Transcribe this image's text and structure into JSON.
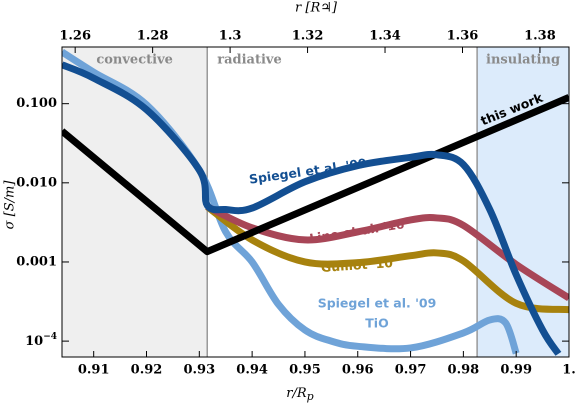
{
  "chart_data": {
    "type": "line",
    "x_label": {
      "main": "r/R",
      "sub": "p"
    },
    "y_label": "σ [S/m]",
    "x2_label": "r [R♃]",
    "xlim": [
      0.904,
      1.0
    ],
    "xticks": [
      0.91,
      0.92,
      0.93,
      0.94,
      0.95,
      0.96,
      0.97,
      0.98,
      0.99,
      {
        "value": 1.0,
        "label": "1."
      }
    ],
    "x2lim": [
      1.2566,
      1.3875
    ],
    "x2ticks": [
      1.26,
      1.28,
      1.3,
      1.32,
      1.34,
      1.36,
      1.38
    ],
    "ylim": [
      6.3e-05,
      0.52
    ],
    "log_y": true,
    "yticks": [
      {
        "value": 0.1,
        "label": "0.100"
      },
      {
        "value": 0.01,
        "label": "0.010"
      },
      0.001,
      {
        "value": 0.0001,
        "label": "10",
        "exponent": "−4"
      }
    ],
    "regions": [
      {
        "name": "convective",
        "xlim": [
          0.904,
          0.9315
        ],
        "color": "#efefef"
      },
      {
        "name": "radiative",
        "xlim": [
          0.9315,
          0.9826
        ],
        "color": "#ffffff"
      },
      {
        "name": "insulating",
        "xlim": [
          0.9826,
          1.0
        ],
        "color": "#dcebfb"
      }
    ],
    "series": [
      {
        "name": "Spiegel et al. '09",
        "name2": "TiO",
        "color": "#6fa3d8",
        "curve": "smooth",
        "x": [
          0.904,
          0.91,
          0.92,
          0.93,
          0.935,
          0.94,
          0.945,
          0.95,
          0.955,
          0.96,
          0.97,
          0.98,
          0.985,
          0.988,
          0.99
        ],
        "values": [
          0.45,
          0.25,
          0.097,
          0.0145,
          0.0024,
          0.001,
          0.00029,
          0.000138,
          0.0001,
          8.6e-05,
          8.2e-05,
          0.000127,
          0.000185,
          0.00017,
          7e-05
        ]
      },
      {
        "name": "Guillot '10",
        "color": "#a7820e",
        "curve": "smooth",
        "x": [
          0.9315,
          0.94,
          0.95,
          0.96,
          0.97,
          0.975,
          0.98,
          0.99,
          1.0
        ],
        "values": [
          0.005,
          0.0019,
          0.001,
          0.00098,
          0.0012,
          0.0013,
          0.00103,
          0.0003,
          0.00025
        ]
      },
      {
        "name": "Line et al. '16",
        "color": "#a84657",
        "curve": "smooth",
        "x": [
          0.9315,
          0.94,
          0.95,
          0.96,
          0.97,
          0.975,
          0.98,
          0.99,
          1.0
        ],
        "values": [
          0.005,
          0.0027,
          0.0019,
          0.0024,
          0.0034,
          0.0036,
          0.0029,
          0.00093,
          0.00035
        ]
      },
      {
        "name": "this work",
        "color": "#000000",
        "curve": "straight",
        "x": [
          0.904,
          0.9315,
          1.0
        ],
        "values": [
          0.045,
          0.00135,
          0.12
        ]
      },
      {
        "name": "Spiegel et al. '09",
        "color": "#134f92",
        "curve": "smooth",
        "x": [
          0.904,
          0.91,
          0.92,
          0.93,
          0.9315,
          0.935,
          0.94,
          0.95,
          0.96,
          0.97,
          0.975,
          0.98,
          0.985,
          0.99,
          0.995,
          0.998
        ],
        "values": [
          0.31,
          0.21,
          0.084,
          0.0145,
          0.0052,
          0.0046,
          0.0048,
          0.0103,
          0.0165,
          0.021,
          0.0226,
          0.017,
          0.0046,
          0.00069,
          0.000138,
          6.9e-05
        ]
      }
    ]
  }
}
